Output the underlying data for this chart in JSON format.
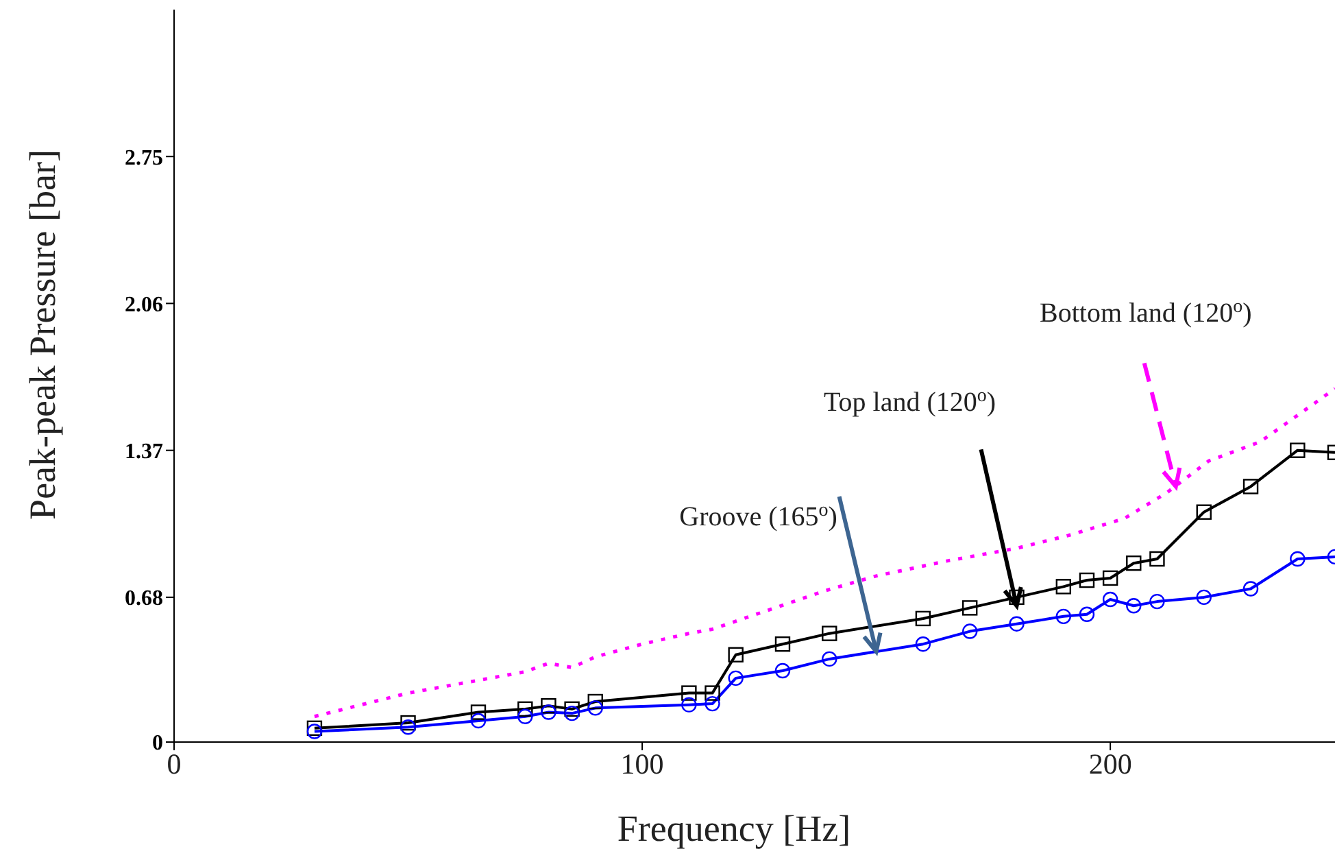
{
  "chart_data": {
    "type": "line",
    "xlabel": "Frequency [Hz]",
    "ylabel": "Peak-peak Pressure [bar]",
    "xlim": [
      0,
      248
    ],
    "xticks": [
      0,
      100,
      200
    ],
    "ylim": [
      0,
      3.44
    ],
    "yticks": [
      0,
      0.68,
      1.37,
      2.06,
      2.75
    ],
    "grid": false,
    "series": [
      {
        "color": "#ff00ff",
        "marker": "none",
        "line_style": "dotted",
        "x": [
          30,
          50,
          65,
          75,
          80,
          85,
          90,
          100,
          110,
          115,
          127,
          139,
          150,
          165,
          180,
          191,
          203,
          212,
          221,
          232,
          241,
          248
        ],
        "values": [
          0.12,
          0.23,
          0.29,
          0.33,
          0.37,
          0.35,
          0.4,
          0.46,
          0.51,
          0.53,
          0.62,
          0.71,
          0.78,
          0.85,
          0.91,
          0.97,
          1.05,
          1.17,
          1.32,
          1.41,
          1.55,
          1.66
        ]
      },
      {
        "color": "#000000",
        "marker": "square",
        "line_style": "solid",
        "x": [
          30,
          50,
          65,
          75,
          80,
          85,
          90,
          110,
          115,
          120,
          130,
          140,
          160,
          170,
          180,
          190,
          195,
          200,
          205,
          210,
          220,
          230,
          240,
          248
        ],
        "values": [
          0.065,
          0.09,
          0.14,
          0.155,
          0.17,
          0.155,
          0.19,
          0.23,
          0.23,
          0.41,
          0.46,
          0.51,
          0.58,
          0.63,
          0.68,
          0.73,
          0.76,
          0.77,
          0.84,
          0.86,
          1.08,
          1.2,
          1.37,
          1.36
        ]
      },
      {
        "color": "#0000ff",
        "marker": "circle",
        "line_style": "solid",
        "x": [
          30,
          50,
          65,
          75,
          80,
          85,
          90,
          110,
          115,
          120,
          130,
          140,
          160,
          170,
          180,
          190,
          195,
          200,
          205,
          210,
          220,
          230,
          240,
          248
        ],
        "values": [
          0.05,
          0.07,
          0.1,
          0.12,
          0.14,
          0.135,
          0.16,
          0.175,
          0.18,
          0.3,
          0.335,
          0.39,
          0.46,
          0.52,
          0.555,
          0.59,
          0.6,
          0.67,
          0.64,
          0.66,
          0.68,
          0.72,
          0.86,
          0.87
        ]
      }
    ],
    "annotations": [
      {
        "text": "Bottom land (120$^{o}$)",
        "x": 214,
        "y": 1.2
      },
      {
        "text": "Top land (120$^{o}$)",
        "x": 180,
        "y": 0.64
      },
      {
        "text": "Groove (165$^{o}$)",
        "x": 150,
        "y": 0.425
      }
    ]
  }
}
